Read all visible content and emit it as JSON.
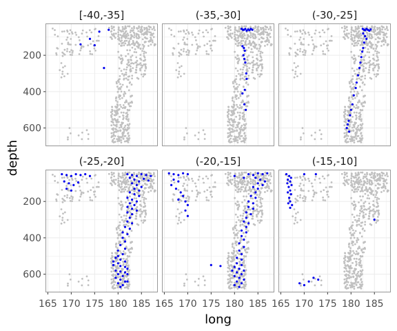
{
  "chart_data": {
    "type": "scatter",
    "facet_by": "lat",
    "facets": [
      "[-40,-35]",
      "(-35,-30]",
      "(-30,-25]",
      "(-25,-20]",
      "(-20,-15]",
      "(-15,-10]"
    ],
    "xlabel": "long",
    "ylabel": "depth",
    "xlim": [
      164.5,
      188.5
    ],
    "ylim": [
      700,
      25
    ],
    "y_reversed": true,
    "xticks": [
      165,
      170,
      175,
      180,
      185
    ],
    "yticks": [
      200,
      400,
      600
    ],
    "grid": true,
    "colors": {
      "background": "#c0c0c0",
      "highlight": "#0000ee",
      "panel_border": "#999999",
      "grid": "#ebebeb"
    },
    "background_series": {
      "description_of_shape": "all quakes shown grey in every panel",
      "clusters": [
        {
          "x_range": [
            166,
            176
          ],
          "y_range": [
            40,
            200
          ],
          "n": 70
        },
        {
          "x_range": [
            167.5,
            169.5
          ],
          "y_range": [
            150,
            340
          ],
          "n": 10
        },
        {
          "x_range": [
            169,
            174
          ],
          "y_range": [
            600,
            670
          ],
          "n": 10
        },
        {
          "x_range": [
            178,
            181
          ],
          "y_range": [
            40,
            120
          ],
          "n": 25
        },
        {
          "x_range": [
            180,
            188
          ],
          "y_range": [
            40,
            150
          ],
          "n": 180
        },
        {
          "x_range": [
            180,
            186
          ],
          "y_range": [
            150,
            330
          ],
          "n": 110
        },
        {
          "x_range": [
            179.5,
            183
          ],
          "y_range": [
            330,
            480
          ],
          "n": 60
        },
        {
          "x_range": [
            178.5,
            182.5
          ],
          "y_range": [
            480,
            680
          ],
          "n": 170
        }
      ]
    },
    "panels": [
      {
        "facet": "[-40,-35]",
        "points": [
          [
            172,
            140
          ],
          [
            174,
            110
          ],
          [
            175,
            145
          ],
          [
            176,
            70
          ],
          [
            177,
            270
          ],
          [
            178,
            60
          ]
        ]
      },
      {
        "facet": "(-35,-30]",
        "points": [
          [
            181.5,
            55
          ],
          [
            181.8,
            60
          ],
          [
            182,
            60
          ],
          [
            182.3,
            55
          ],
          [
            182.6,
            65
          ],
          [
            182.9,
            58
          ],
          [
            183.2,
            62
          ],
          [
            183.5,
            55
          ],
          [
            183.8,
            60
          ],
          [
            181.7,
            150
          ],
          [
            182,
            160
          ],
          [
            182.2,
            175
          ],
          [
            181.9,
            200
          ],
          [
            182.1,
            220
          ],
          [
            182.3,
            240
          ],
          [
            182.5,
            300
          ],
          [
            182.6,
            330
          ],
          [
            182.2,
            390
          ],
          [
            181.7,
            410
          ],
          [
            182.1,
            470
          ],
          [
            182.4,
            500
          ]
        ]
      },
      {
        "facet": "(-30,-25]",
        "points": [
          [
            182.5,
            55
          ],
          [
            182.8,
            60
          ],
          [
            183,
            62
          ],
          [
            183.3,
            55
          ],
          [
            183.6,
            60
          ],
          [
            183.9,
            65
          ],
          [
            184.2,
            58
          ],
          [
            182.6,
            80
          ],
          [
            183.0,
            95
          ],
          [
            183.3,
            110
          ],
          [
            182.8,
            130
          ],
          [
            182.6,
            160
          ],
          [
            182.4,
            180
          ],
          [
            182.2,
            210
          ],
          [
            182.0,
            240
          ],
          [
            181.8,
            270
          ],
          [
            181.5,
            310
          ],
          [
            181.2,
            350
          ],
          [
            181.0,
            380
          ],
          [
            180.6,
            420
          ],
          [
            180.3,
            470
          ],
          [
            180.0,
            500
          ],
          [
            179.8,
            530
          ],
          [
            179.5,
            560
          ],
          [
            179.3,
            580
          ],
          [
            179.1,
            600
          ],
          [
            179.6,
            620
          ]
        ]
      },
      {
        "facet": "(-25,-20]",
        "points": [
          [
            168,
            50
          ],
          [
            169,
            55
          ],
          [
            170,
            60
          ],
          [
            171,
            50
          ],
          [
            172,
            55
          ],
          [
            173,
            50
          ],
          [
            174,
            60
          ],
          [
            168.5,
            90
          ],
          [
            169.5,
            100
          ],
          [
            170.5,
            110
          ],
          [
            171.5,
            95
          ],
          [
            169,
            130
          ],
          [
            170,
            140
          ],
          [
            182,
            50
          ],
          [
            183,
            55
          ],
          [
            184,
            60
          ],
          [
            185,
            50
          ],
          [
            186,
            55
          ],
          [
            187,
            60
          ],
          [
            182.5,
            70
          ],
          [
            183.5,
            80
          ],
          [
            184.5,
            90
          ],
          [
            185.5,
            75
          ],
          [
            186.5,
            85
          ],
          [
            183,
            100
          ],
          [
            184,
            110
          ],
          [
            185,
            120
          ],
          [
            183.5,
            130
          ],
          [
            184.5,
            140
          ],
          [
            182.5,
            150
          ],
          [
            183.5,
            160
          ],
          [
            184.5,
            170
          ],
          [
            182,
            180
          ],
          [
            183,
            190
          ],
          [
            184,
            200
          ],
          [
            182.5,
            210
          ],
          [
            183.5,
            220
          ],
          [
            182,
            230
          ],
          [
            183,
            240
          ],
          [
            184,
            250
          ],
          [
            182,
            260
          ],
          [
            183,
            270
          ],
          [
            182.5,
            290
          ],
          [
            182,
            310
          ],
          [
            183,
            320
          ],
          [
            181.5,
            340
          ],
          [
            182.5,
            350
          ],
          [
            181,
            370
          ],
          [
            182,
            380
          ],
          [
            181,
            400
          ],
          [
            181.5,
            420
          ],
          [
            180.5,
            440
          ],
          [
            181.5,
            460
          ],
          [
            180,
            470
          ],
          [
            181,
            490
          ],
          [
            180,
            500
          ],
          [
            179.5,
            510
          ],
          [
            180.5,
            520
          ],
          [
            181.5,
            530
          ],
          [
            180,
            540
          ],
          [
            179,
            550
          ],
          [
            180.5,
            555
          ],
          [
            181.5,
            560
          ],
          [
            182,
            570
          ],
          [
            179.5,
            580
          ],
          [
            180.5,
            585
          ],
          [
            181.5,
            590
          ],
          [
            180,
            600
          ],
          [
            181,
            610
          ],
          [
            179.5,
            620
          ],
          [
            180.5,
            630
          ],
          [
            181.5,
            640
          ],
          [
            180,
            650
          ],
          [
            181,
            660
          ],
          [
            180.5,
            670
          ],
          [
            179,
            530
          ],
          [
            182,
            600
          ],
          [
            182,
            640
          ]
        ]
      },
      {
        "facet": "(-20,-15]",
        "points": [
          [
            166,
            45
          ],
          [
            167,
            50
          ],
          [
            168,
            55
          ],
          [
            169,
            45
          ],
          [
            170,
            50
          ],
          [
            167,
            80
          ],
          [
            168,
            90
          ],
          [
            166.5,
            110
          ],
          [
            167.5,
            130
          ],
          [
            168.5,
            150
          ],
          [
            169,
            170
          ],
          [
            168,
            190
          ],
          [
            169.5,
            200
          ],
          [
            170,
            220
          ],
          [
            169.5,
            250
          ],
          [
            170,
            280
          ],
          [
            180,
            60
          ],
          [
            182,
            70
          ],
          [
            183,
            50
          ],
          [
            184,
            55
          ],
          [
            185,
            45
          ],
          [
            186,
            50
          ],
          [
            187,
            45
          ],
          [
            184.5,
            70
          ],
          [
            185.5,
            80
          ],
          [
            186.5,
            90
          ],
          [
            185,
            100
          ],
          [
            186,
            110
          ],
          [
            184,
            120
          ],
          [
            185,
            130
          ],
          [
            184.5,
            150
          ],
          [
            183.5,
            170
          ],
          [
            184.5,
            180
          ],
          [
            183,
            200
          ],
          [
            184,
            210
          ],
          [
            183,
            230
          ],
          [
            184,
            240
          ],
          [
            182.5,
            260
          ],
          [
            183.5,
            270
          ],
          [
            182.5,
            290
          ],
          [
            182,
            310
          ],
          [
            183,
            320
          ],
          [
            182.5,
            340
          ],
          [
            181.5,
            360
          ],
          [
            182.5,
            370
          ],
          [
            181.5,
            390
          ],
          [
            182,
            410
          ],
          [
            181,
            430
          ],
          [
            182,
            450
          ],
          [
            181,
            470
          ],
          [
            181.5,
            490
          ],
          [
            180.5,
            510
          ],
          [
            181.5,
            520
          ],
          [
            180.5,
            540
          ],
          [
            181.5,
            550
          ],
          [
            180,
            560
          ],
          [
            181,
            570
          ],
          [
            182,
            580
          ],
          [
            180.5,
            590
          ],
          [
            181.5,
            600
          ],
          [
            180,
            610
          ],
          [
            181,
            620
          ],
          [
            182,
            630
          ],
          [
            180.5,
            640
          ],
          [
            181.5,
            650
          ],
          [
            180,
            660
          ],
          [
            181,
            670
          ],
          [
            175,
            550
          ],
          [
            177,
            555
          ],
          [
            179.5,
            580
          ]
        ]
      },
      {
        "facet": "(-15,-10]",
        "points": [
          [
            166.2,
            50
          ],
          [
            166.8,
            60
          ],
          [
            167.2,
            70
          ],
          [
            166.5,
            80
          ],
          [
            167,
            90
          ],
          [
            166.4,
            100
          ],
          [
            167.3,
            110
          ],
          [
            166.7,
            120
          ],
          [
            167,
            140
          ],
          [
            166.5,
            150
          ],
          [
            167.2,
            160
          ],
          [
            166.8,
            180
          ],
          [
            167,
            200
          ],
          [
            166.6,
            210
          ],
          [
            167.4,
            220
          ],
          [
            167,
            235
          ],
          [
            170,
            50
          ],
          [
            172.5,
            50
          ],
          [
            169,
            650
          ],
          [
            171,
            640
          ],
          [
            173,
            630
          ],
          [
            172,
            620
          ],
          [
            170,
            660
          ],
          [
            185,
            300
          ]
        ]
      }
    ]
  }
}
